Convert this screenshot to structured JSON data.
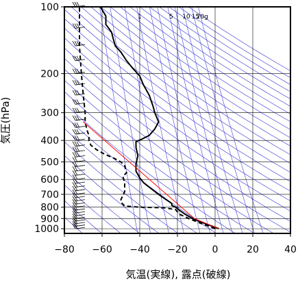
{
  "chart_data": {
    "type": "line",
    "title": "",
    "xlabel": "気温(実線), 露点(破線)",
    "ylabel": "気圧(hPa)",
    "xlim": [
      -80,
      40
    ],
    "ylim": [
      1050,
      100
    ],
    "yscale": "log",
    "grid": true,
    "x_ticks": [
      "−80",
      "−60",
      "−40",
      "−20",
      "0",
      "20",
      "40"
    ],
    "x_tick_values": [
      -80,
      -60,
      -40,
      -20,
      0,
      20,
      40
    ],
    "y_ticks": [
      "100",
      "200",
      "300",
      "400",
      "500",
      "600",
      "700",
      "800",
      "900",
      "1000"
    ],
    "y_tick_values": [
      100,
      200,
      300,
      400,
      500,
      600,
      700,
      800,
      900,
      1000
    ],
    "mixing_ratio_labels": [
      "1",
      "5",
      "10",
      "15",
      "20g"
    ],
    "mixing_ratio_values": [
      1,
      5,
      10,
      15,
      20
    ],
    "series": [
      {
        "style": "solid",
        "color": "#000000",
        "points": [
          [
            2,
            1000
          ],
          [
            -5,
            950
          ],
          [
            -12,
            900
          ],
          [
            -16,
            860
          ],
          [
            -19,
            825
          ],
          [
            -21,
            800
          ],
          [
            -23,
            785
          ],
          [
            -23,
            770
          ],
          [
            -25,
            750
          ],
          [
            -28,
            720
          ],
          [
            -31,
            690
          ],
          [
            -35,
            650
          ],
          [
            -38,
            620
          ],
          [
            -40,
            590
          ],
          [
            -42,
            550
          ],
          [
            -42,
            510
          ],
          [
            -41,
            470
          ],
          [
            -42,
            430
          ],
          [
            -42,
            405
          ],
          [
            -39,
            395
          ],
          [
            -35,
            380
          ],
          [
            -32,
            355
          ],
          [
            -30,
            330
          ],
          [
            -31,
            315
          ],
          [
            -32,
            300
          ],
          [
            -33,
            280
          ],
          [
            -35,
            250
          ],
          [
            -38,
            225
          ],
          [
            -40,
            205
          ],
          [
            -44,
            188
          ],
          [
            -47,
            175
          ],
          [
            -50,
            160
          ],
          [
            -53,
            150
          ],
          [
            -54,
            140
          ],
          [
            -55,
            130
          ],
          [
            -58,
            120
          ],
          [
            -58,
            110
          ],
          [
            -60,
            103
          ],
          [
            -61,
            100
          ]
        ]
      },
      {
        "style": "dashed",
        "color": "#000000",
        "points": [
          [
            0,
            1000
          ],
          [
            -7,
            950
          ],
          [
            -14,
            900
          ],
          [
            -19,
            860
          ],
          [
            -21,
            820
          ],
          [
            -27,
            805
          ],
          [
            -40,
            800
          ],
          [
            -48,
            790
          ],
          [
            -50,
            760
          ],
          [
            -50,
            740
          ],
          [
            -48,
            680
          ],
          [
            -48,
            620
          ],
          [
            -49,
            580
          ],
          [
            -47,
            560
          ],
          [
            -48,
            520
          ],
          [
            -50,
            500
          ],
          [
            -54,
            480
          ],
          [
            -59,
            460
          ],
          [
            -63,
            440
          ],
          [
            -66,
            420
          ],
          [
            -67,
            400
          ],
          [
            -67,
            380
          ],
          [
            -68,
            360
          ],
          [
            -69,
            330
          ],
          [
            -69,
            300
          ],
          [
            -70,
            250
          ],
          [
            -71,
            200
          ],
          [
            -72,
            150
          ],
          [
            -72,
            100
          ]
        ]
      },
      {
        "style": "solid",
        "color": "#ff0000",
        "points": [
          [
            2,
            1000
          ],
          [
            -11,
            900
          ],
          [
            -70,
            330
          ]
        ]
      }
    ]
  }
}
